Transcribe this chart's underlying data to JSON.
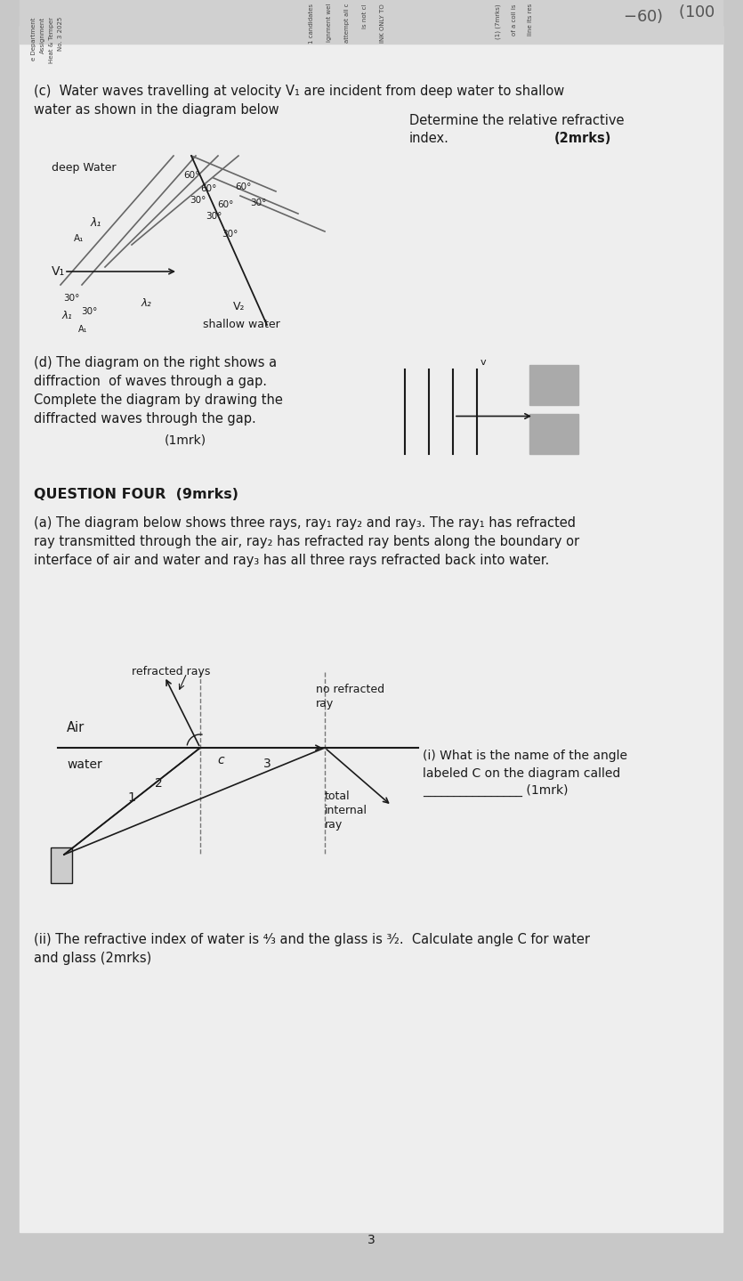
{
  "bg_color": "#c8c8c8",
  "paper_color": "#eeeeee",
  "text_color": "#2a2a2a",
  "dark_color": "#1a1a1a",
  "gray_color": "#888888",
  "light_gray": "#b0b0b0",
  "section_c_title": "(c)  Water waves travelling at velocity V₁ are incident from deep water to shallow\nwater as shown in the diagram below",
  "determine_text": "Determine the relative refractive\nindex.",
  "marks_2mrks": "(2mrks)",
  "deep_water_label": "deep Water",
  "shallow_water_label": "shallow water",
  "v1_label": "V₁",
  "v2_label": "V₂",
  "lambda1_label": "λ₁",
  "lambda2_label": "λ₂",
  "section_d_title": "(d) The diagram on the right shows a\ndiffraction  of waves through a gap.\nComplete the diagram by drawing the\ndiffracted waves through the gap.",
  "d_marks": "(1mrk)",
  "question_four_title": "QUESTION FOUR  (9mrks)",
  "qa_text": "(a) The diagram below shows three rays, ray₁ ray₂ and ray₃. The ray₁ has refracted\nray transmitted through the air, ray₂ has refracted ray bents along the boundary or\ninterface of air and water and ray₃ has all three rays refracted back into water.",
  "refracted_rays_label": "refracted rays",
  "no_refracted_label": "no refracted\nray",
  "air_label": "Air",
  "water_label": "water",
  "c_label": "c",
  "ray1_label": "1",
  "ray2_label": "2",
  "ray3_label": "3",
  "total_internal_label": "total\ninternal\nray",
  "qi_text": "(i) What is the name of the angle\nlabeled C on the diagram called\n________________ (1mrk)",
  "qii_text": "(ii) The refractive index of water is ⁴⁄₃ and the glass is ³⁄₂.  Calculate angle C for water\nand glass (2mrks)",
  "page_number": "3"
}
